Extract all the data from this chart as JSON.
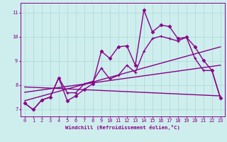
{
  "background_color": "#ceeeed",
  "grid_color": "#aad8d8",
  "line_color": "#880088",
  "xlabel": "Windchill (Refroidissement éolien,°C)",
  "xlim": [
    -0.5,
    23.5
  ],
  "ylim": [
    6.7,
    11.4
  ],
  "yticks": [
    7,
    8,
    9,
    10,
    11
  ],
  "xticks": [
    0,
    1,
    2,
    3,
    4,
    5,
    6,
    7,
    8,
    9,
    10,
    11,
    12,
    13,
    14,
    15,
    16,
    17,
    18,
    19,
    20,
    21,
    22,
    23
  ],
  "lines": [
    {
      "x": [
        0,
        1,
        2,
        3,
        4,
        5,
        6,
        7,
        8,
        9,
        10,
        11,
        12,
        13,
        14,
        15,
        16,
        17,
        18,
        19,
        20,
        21,
        22,
        23
      ],
      "y": [
        7.25,
        6.98,
        7.38,
        7.5,
        8.3,
        7.35,
        7.55,
        7.82,
        8.05,
        9.4,
        9.1,
        9.58,
        9.62,
        8.82,
        11.1,
        10.2,
        10.48,
        10.42,
        9.92,
        9.98,
        9.58,
        9.02,
        8.6,
        7.45
      ],
      "marker": "D",
      "marker_size": 2.5,
      "linewidth": 1.0
    },
    {
      "x": [
        0,
        1,
        2,
        3,
        4,
        5,
        6,
        7,
        8,
        9,
        10,
        11,
        12,
        13,
        14,
        15,
        16,
        17,
        18,
        19,
        20,
        21,
        22,
        23
      ],
      "y": [
        7.25,
        6.98,
        7.38,
        7.5,
        8.3,
        7.68,
        7.68,
        8.05,
        8.15,
        8.7,
        8.25,
        8.4,
        8.82,
        8.52,
        9.4,
        9.92,
        10.02,
        9.92,
        9.82,
        9.98,
        9.1,
        8.6,
        8.6,
        7.45
      ],
      "marker": "P",
      "marker_size": 3.0,
      "linewidth": 1.0
    },
    {
      "x": [
        0,
        23
      ],
      "y": [
        7.35,
        9.58
      ],
      "marker": null,
      "linewidth": 1.0
    },
    {
      "x": [
        0,
        23
      ],
      "y": [
        7.7,
        8.82
      ],
      "marker": null,
      "linewidth": 1.0
    },
    {
      "x": [
        0,
        23
      ],
      "y": [
        7.92,
        7.55
      ],
      "marker": null,
      "linewidth": 1.0
    }
  ]
}
